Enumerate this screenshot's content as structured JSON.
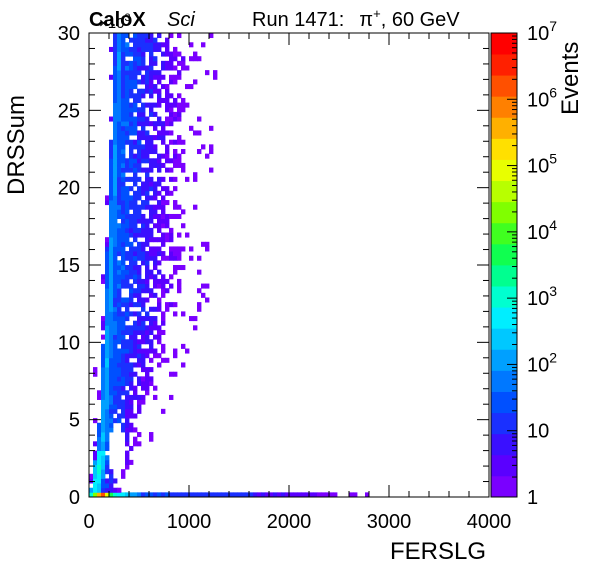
{
  "header": {
    "brand": "CaloX",
    "brand_sub": "Sci",
    "run_label": "Run 1471:",
    "beam_particle": "π",
    "beam_charge": "+",
    "beam_energy": ", 60 GeV",
    "x_multiplier_base": "×10",
    "x_multiplier_exp": "3"
  },
  "chart_data": {
    "type": "heatmap",
    "xlabel": "FERSLG",
    "ylabel": "DRSSum",
    "zlabel": "Events",
    "xlim": [
      0,
      4000
    ],
    "ylim": [
      0,
      30
    ],
    "zlim": [
      1,
      10000000
    ],
    "z_scale": "log",
    "x_ticks": [
      0,
      1000,
      2000,
      3000,
      4000
    ],
    "x_tick_labels": [
      "0",
      "1000",
      "2000",
      "3000",
      "4000"
    ],
    "y_ticks": [
      0,
      5,
      10,
      15,
      20,
      25,
      30
    ],
    "y_tick_labels": [
      "0",
      "5",
      "10",
      "15",
      "20",
      "25",
      "30"
    ],
    "z_ticks": [
      1,
      10,
      100,
      1000,
      10000,
      100000,
      1000000,
      10000000
    ],
    "z_tick_bases": [
      "1",
      "10",
      "10",
      "10",
      "10",
      "10",
      "10",
      "10"
    ],
    "z_tick_exps": [
      "",
      "",
      "2",
      "3",
      "4",
      "5",
      "6",
      "7"
    ],
    "palette": [
      "#7a00ff",
      "#5a00ff",
      "#3a10ff",
      "#1a30ff",
      "#0050ff",
      "#0078ff",
      "#00a0ff",
      "#00c8ff",
      "#00eeff",
      "#00ffd0",
      "#00ff90",
      "#10ff50",
      "#40ff20",
      "#80ff00",
      "#b8ff00",
      "#e8ff00",
      "#ffe000",
      "#ffb000",
      "#ff8000",
      "#ff5000",
      "#ff2000",
      "#ff0000"
    ],
    "structure": {
      "band_centerline": [
        [
          60,
          0.3
        ],
        [
          140,
          4
        ],
        [
          185,
          10
        ],
        [
          230,
          17
        ],
        [
          275,
          25
        ],
        [
          305,
          30
        ]
      ],
      "hot_core": {
        "x": 130,
        "y": 0.2,
        "max_events": 4000000
      },
      "horizontal_tail": {
        "y_max": 0.3,
        "x_max": 2500,
        "isolated_x": [
          2650,
          2780
        ]
      },
      "halo_x_width": [
        180,
        680
      ],
      "left_fringe_x": 70
    }
  }
}
